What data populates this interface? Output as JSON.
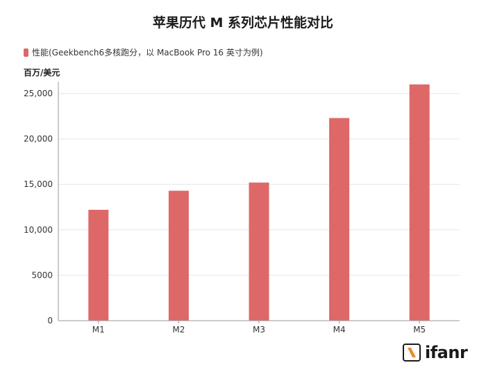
{
  "colors": {
    "bar": "#de6868",
    "grid": "#e6e6e6",
    "axis": "#999999",
    "text": "#333333"
  },
  "logo": {
    "text": "ifanr",
    "icon": "ifanr-logo-icon"
  },
  "chart_data": {
    "type": "bar",
    "title": "苹果历代 M 系列芯片性能对比",
    "ylabel": "百万/美元",
    "xlabel": "",
    "legend_position": "top-left",
    "grid": true,
    "categories": [
      "M1",
      "M2",
      "M3",
      "M4",
      "M5"
    ],
    "series": [
      {
        "name": "性能(Geekbench6多核跑分，以 MacBook Pro 16 英寸为例)",
        "values": [
          12200,
          14300,
          15200,
          22300,
          26000
        ]
      }
    ],
    "ylim": [
      0,
      25000
    ],
    "yticks": [
      0,
      5000,
      10000,
      15000,
      20000,
      25000
    ],
    "ytick_labels": [
      "0",
      "5000",
      "10,000",
      "15,000",
      "20,000",
      "25,000"
    ]
  }
}
